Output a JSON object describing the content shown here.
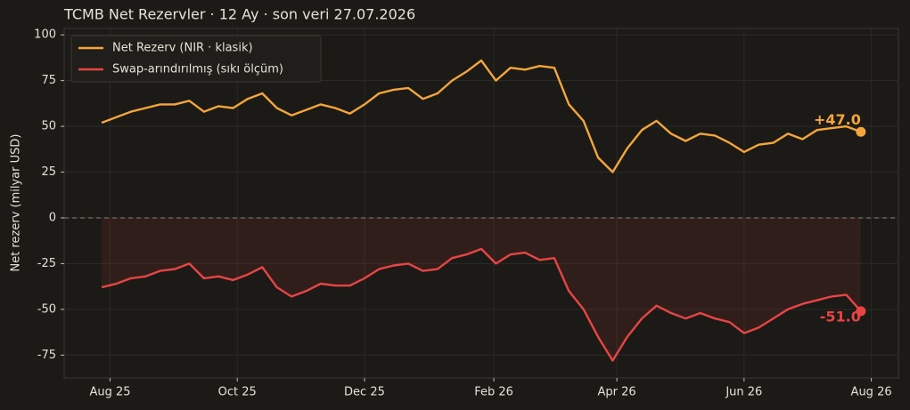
{
  "chart_data": {
    "type": "line",
    "title": "TCMB Net Rezervler · 12 Ay · son veri 27.07.2026",
    "y_label": "Net rezerv (milyar USD)",
    "x": [
      "2025-07-28",
      "2025-08-04",
      "2025-08-11",
      "2025-08-18",
      "2025-08-25",
      "2025-09-01",
      "2025-09-08",
      "2025-09-15",
      "2025-09-22",
      "2025-09-29",
      "2025-10-06",
      "2025-10-13",
      "2025-10-20",
      "2025-10-27",
      "2025-11-03",
      "2025-11-10",
      "2025-11-17",
      "2025-11-24",
      "2025-12-01",
      "2025-12-08",
      "2025-12-15",
      "2025-12-22",
      "2025-12-29",
      "2026-01-05",
      "2026-01-12",
      "2026-01-19",
      "2026-01-26",
      "2026-02-02",
      "2026-02-09",
      "2026-02-16",
      "2026-02-23",
      "2026-03-02",
      "2026-03-09",
      "2026-03-16",
      "2026-03-23",
      "2026-03-30",
      "2026-04-06",
      "2026-04-13",
      "2026-04-20",
      "2026-04-27",
      "2026-05-04",
      "2026-05-11",
      "2026-05-18",
      "2026-05-25",
      "2026-06-01",
      "2026-06-08",
      "2026-06-15",
      "2026-06-22",
      "2026-06-29",
      "2026-07-06",
      "2026-07-13",
      "2026-07-20",
      "2026-07-27"
    ],
    "series": [
      {
        "name": "Net Rezerv (NIR · klasik)",
        "color": "#f5a53a",
        "values": [
          52,
          55,
          58,
          60,
          62,
          62,
          64,
          58,
          61,
          60,
          65,
          68,
          60,
          56,
          59,
          62,
          60,
          57,
          62,
          68,
          70,
          71,
          65,
          68,
          75,
          80,
          86,
          75,
          82,
          81,
          83,
          82,
          62,
          53,
          33,
          25,
          38,
          48,
          53,
          46,
          42,
          46,
          45,
          41,
          36,
          40,
          41,
          46,
          43,
          48,
          49,
          50,
          47
        ],
        "value_labels": [
          null,
          null,
          null,
          null,
          null,
          null,
          null,
          null,
          null,
          null,
          null,
          null,
          null,
          null,
          null,
          null,
          null,
          null,
          null,
          null,
          null,
          null,
          null,
          null,
          null,
          null,
          null,
          null,
          null,
          null,
          null,
          null,
          null,
          null,
          null,
          null,
          null,
          null,
          null,
          null,
          null,
          null,
          null,
          null,
          null,
          null,
          null,
          null,
          null,
          null,
          null,
          null,
          "+47.0"
        ]
      },
      {
        "name": "Swap-arındırılmış (sıkı ölçüm)",
        "color": "#e84444",
        "values": [
          -38,
          -36,
          -33,
          -32,
          -29,
          -28,
          -25,
          -33,
          -32,
          -34,
          -31,
          -27,
          -38,
          -43,
          -40,
          -36,
          -37,
          -37,
          -33,
          -28,
          -26,
          -25,
          -29,
          -28,
          -22,
          -20,
          -17,
          -25,
          -20,
          -19,
          -23,
          -22,
          -40,
          -50,
          -65,
          -78,
          -65,
          -55,
          -48,
          -52,
          -55,
          -52,
          -55,
          -57,
          -63,
          -60,
          -55,
          -50,
          -47,
          -45,
          -43,
          -42,
          -51
        ],
        "value_labels": [
          null,
          null,
          null,
          null,
          null,
          null,
          null,
          null,
          null,
          null,
          null,
          null,
          null,
          null,
          null,
          null,
          null,
          null,
          null,
          null,
          null,
          null,
          null,
          null,
          null,
          null,
          null,
          null,
          null,
          null,
          null,
          null,
          null,
          null,
          null,
          null,
          null,
          null,
          null,
          null,
          null,
          null,
          null,
          null,
          null,
          null,
          null,
          null,
          null,
          null,
          null,
          null,
          "-51.0"
        ]
      }
    ],
    "xlim": [
      "2025-07-10",
      "2026-08-14"
    ],
    "xticks": [
      {
        "value": "2025-08-01",
        "label": "Aug 25"
      },
      {
        "value": "2025-10-01",
        "label": "Oct 25"
      },
      {
        "value": "2025-12-01",
        "label": "Dec 25"
      },
      {
        "value": "2026-02-01",
        "label": "Feb 26"
      },
      {
        "value": "2026-04-01",
        "label": "Apr 26"
      },
      {
        "value": "2026-06-01",
        "label": "Jun 26"
      },
      {
        "value": "2026-08-01",
        "label": "Aug 26"
      }
    ],
    "ylim": [
      -87.5,
      103.5
    ],
    "yticks": [
      -75,
      -50,
      -25,
      0,
      25,
      50,
      75,
      100
    ],
    "grid": true,
    "legend": "upper left"
  }
}
